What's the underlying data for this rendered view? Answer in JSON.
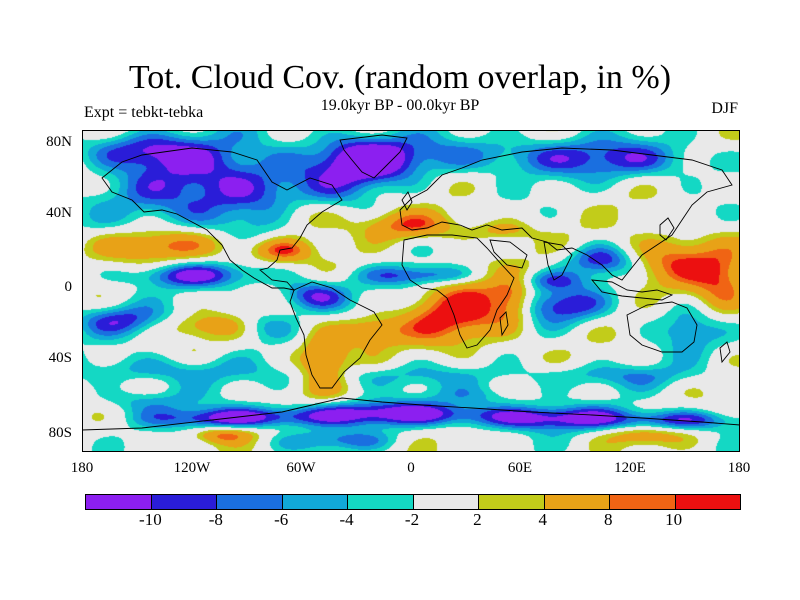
{
  "title": "Tot. Cloud Cov. (random overlap, in %)",
  "subtitle": "19.0kyr BP - 00.0kyr BP",
  "left_label": "Expt = tebkt-tebka",
  "right_label": "DJF",
  "y_ticks": [
    "80N",
    "40N",
    "0",
    "40S",
    "80S"
  ],
  "x_ticks": [
    "180",
    "120W",
    "60W",
    "0",
    "60E",
    "120E",
    "180"
  ],
  "colorbar": {
    "colors": [
      "#8c1ff0",
      "#2a1dd8",
      "#1a6fe0",
      "#11a8d8",
      "#14d8c4",
      "#e9e9e9",
      "#c2cc1a",
      "#e8a217",
      "#f06414",
      "#ec1010"
    ],
    "labels": [
      "-10",
      "-8",
      "-6",
      "-4",
      "-2",
      "2",
      "4",
      "8",
      "10"
    ]
  },
  "map": {
    "projection": "cylindrical equidistant",
    "lon_range": [
      -180,
      180
    ],
    "lat_range": [
      -90,
      90
    ]
  }
}
